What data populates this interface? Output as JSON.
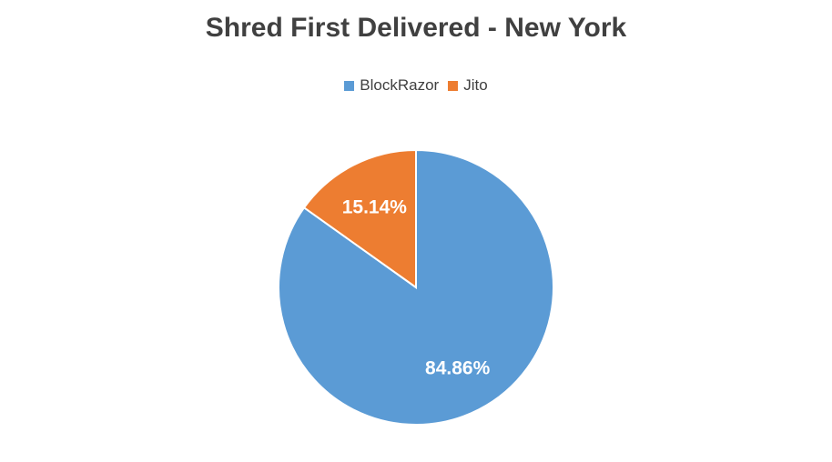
{
  "chart_data": {
    "type": "pie",
    "title": "Shred First Delivered - New York",
    "legend_position": "top",
    "slices": [
      {
        "name": "BlockRazor",
        "value": 84.86,
        "label": "84.86%",
        "color": "#5b9bd5"
      },
      {
        "name": "Jito",
        "value": 15.14,
        "label": "15.14%",
        "color": "#ed7d31"
      }
    ]
  }
}
